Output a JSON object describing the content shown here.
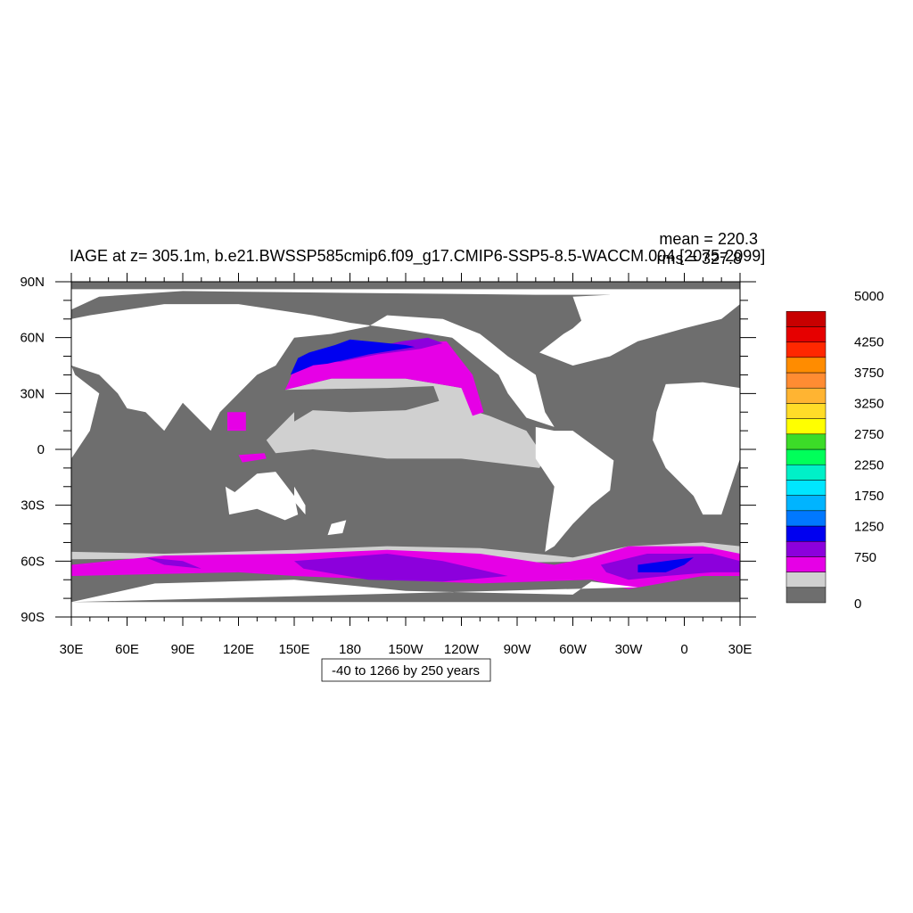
{
  "title": "IAGE at z= 305.1m, b.e21.BWSSP585cmip6.f09_g17.CMIP6-SSP5-8.5-WACCM.004 [2075-2099]",
  "stats": {
    "mean": "mean = 220.3",
    "rms": "rms = 327.8"
  },
  "contour_info": "-40 to 1266 by 250 years",
  "chart_data": {
    "type": "heatmap",
    "title": "IAGE at z= 305.1m, b.e21.BWSSP585cmip6.f09_g17.CMIP6-SSP5-8.5-WACCM.004 [2075-2099]",
    "xlabel": "",
    "ylabel": "",
    "x_range": [
      30,
      390
    ],
    "y_range": [
      -90,
      90
    ],
    "x_ticks": [
      {
        "value": 30,
        "label": "30E"
      },
      {
        "value": 60,
        "label": "60E"
      },
      {
        "value": 90,
        "label": "90E"
      },
      {
        "value": 120,
        "label": "120E"
      },
      {
        "value": 150,
        "label": "150E"
      },
      {
        "value": 180,
        "label": "180"
      },
      {
        "value": 210,
        "label": "150W"
      },
      {
        "value": 240,
        "label": "120W"
      },
      {
        "value": 270,
        "label": "90W"
      },
      {
        "value": 300,
        "label": "60W"
      },
      {
        "value": 330,
        "label": "30W"
      },
      {
        "value": 360,
        "label": "0"
      },
      {
        "value": 390,
        "label": "30E"
      }
    ],
    "y_ticks": [
      {
        "value": 90,
        "label": "90N"
      },
      {
        "value": 60,
        "label": "60N"
      },
      {
        "value": 30,
        "label": "30N"
      },
      {
        "value": 0,
        "label": "0"
      },
      {
        "value": -30,
        "label": "30S"
      },
      {
        "value": -60,
        "label": "60S"
      },
      {
        "value": -90,
        "label": "90S"
      }
    ],
    "colorbar": {
      "colors": [
        "#6e6e6e",
        "#d0d0d0",
        "#e600e6",
        "#8c00dc",
        "#0000f0",
        "#0078ff",
        "#00b4ff",
        "#00e6ff",
        "#00f0c8",
        "#00ff5a",
        "#3cdc28",
        "#ffff00",
        "#ffdc28",
        "#ffb432",
        "#ff8c32",
        "#ff8c00",
        "#ff2800",
        "#e60000",
        "#c80000"
      ],
      "labels": [
        "0",
        "750",
        "1250",
        "1750",
        "2250",
        "2750",
        "3250",
        "3750",
        "4250",
        "5000"
      ]
    },
    "regions": [
      {
        "class": 1,
        "points": [
          [
            135,
            5
          ],
          [
            150,
            20
          ],
          [
            180,
            25
          ],
          [
            215,
            30
          ],
          [
            255,
            18
          ],
          [
            275,
            10
          ],
          [
            285,
            -5
          ],
          [
            282,
            -10
          ],
          [
            240,
            -5
          ],
          [
            200,
            -5
          ],
          [
            160,
            0
          ],
          [
            140,
            -2
          ]
        ]
      },
      {
        "class": 0,
        "points": [
          [
            150,
            15
          ],
          [
            150,
            28
          ],
          [
            172,
            33
          ],
          [
            200,
            33
          ],
          [
            225,
            34
          ],
          [
            228,
            26
          ],
          [
            210,
            21
          ],
          [
            180,
            20
          ],
          [
            160,
            21
          ]
        ]
      },
      {
        "class": 1,
        "points": [
          [
            145,
            32
          ],
          [
            170,
            38
          ],
          [
            210,
            38
          ],
          [
            240,
            33
          ],
          [
            250,
            20
          ],
          [
            240,
            16
          ],
          [
            228,
            26
          ],
          [
            225,
            34
          ],
          [
            200,
            33
          ]
        ]
      },
      {
        "class": 2,
        "points": [
          [
            147,
            36
          ],
          [
            150,
            44
          ],
          [
            180,
            50
          ],
          [
            210,
            57
          ],
          [
            232,
            58
          ],
          [
            246,
            40
          ],
          [
            252,
            20
          ],
          [
            246,
            18
          ],
          [
            240,
            33
          ],
          [
            210,
            38
          ],
          [
            170,
            38
          ],
          [
            145,
            32
          ]
        ]
      },
      {
        "class": 3,
        "points": [
          [
            160,
            47
          ],
          [
            180,
            52
          ],
          [
            208,
            58
          ],
          [
            222,
            60
          ],
          [
            230,
            57
          ],
          [
            218,
            54
          ],
          [
            195,
            51
          ],
          [
            175,
            47
          ]
        ]
      },
      {
        "class": 4,
        "points": [
          [
            150,
            44
          ],
          [
            158,
            52
          ],
          [
            172,
            56
          ],
          [
            180,
            59
          ],
          [
            190,
            58
          ],
          [
            210,
            56
          ],
          [
            215,
            55
          ],
          [
            190,
            51
          ],
          [
            168,
            46
          ]
        ]
      },
      {
        "class": 4,
        "points": [
          [
            148,
            40
          ],
          [
            152,
            49
          ],
          [
            158,
            52
          ],
          [
            160,
            45
          ]
        ]
      },
      {
        "class": 2,
        "points": [
          [
            114,
            10
          ],
          [
            114,
            20
          ],
          [
            124,
            20
          ],
          [
            124,
            10
          ]
        ]
      },
      {
        "class": 2,
        "points": [
          [
            120,
            -3
          ],
          [
            122,
            -7
          ],
          [
            135,
            -5
          ],
          [
            134,
            -2
          ]
        ]
      },
      {
        "class": 1,
        "points": [
          [
            30,
            -55
          ],
          [
            80,
            -56
          ],
          [
            150,
            -54
          ],
          [
            200,
            -52
          ],
          [
            250,
            -53
          ],
          [
            300,
            -58
          ],
          [
            330,
            -52
          ],
          [
            370,
            -50
          ],
          [
            390,
            -52
          ],
          [
            390,
            -60
          ],
          [
            330,
            -60
          ],
          [
            250,
            -61
          ],
          [
            150,
            -58
          ],
          [
            30,
            -59
          ]
        ]
      },
      {
        "class": 2,
        "points": [
          [
            30,
            -62
          ],
          [
            80,
            -57
          ],
          [
            150,
            -56
          ],
          [
            200,
            -54
          ],
          [
            250,
            -56
          ],
          [
            290,
            -62
          ],
          [
            310,
            -58
          ],
          [
            330,
            -52
          ],
          [
            370,
            -52
          ],
          [
            390,
            -56
          ],
          [
            390,
            -68
          ],
          [
            370,
            -68
          ],
          [
            330,
            -75
          ],
          [
            310,
            -70
          ],
          [
            250,
            -72
          ],
          [
            200,
            -70
          ],
          [
            150,
            -68
          ],
          [
            120,
            -66
          ],
          [
            30,
            -68
          ]
        ]
      },
      {
        "class": 3,
        "points": [
          [
            70,
            -58
          ],
          [
            80,
            -62
          ],
          [
            100,
            -64
          ],
          [
            90,
            -60
          ]
        ]
      },
      {
        "class": 3,
        "points": [
          [
            150,
            -60
          ],
          [
            200,
            -56
          ],
          [
            230,
            -60
          ],
          [
            265,
            -68
          ],
          [
            230,
            -71
          ],
          [
            190,
            -70
          ],
          [
            155,
            -64
          ]
        ]
      },
      {
        "class": 3,
        "points": [
          [
            315,
            -62
          ],
          [
            340,
            -56
          ],
          [
            375,
            -56
          ],
          [
            390,
            -60
          ],
          [
            390,
            -66
          ],
          [
            375,
            -66
          ],
          [
            350,
            -68
          ],
          [
            330,
            -70
          ],
          [
            318,
            -66
          ]
        ]
      },
      {
        "class": 4,
        "points": [
          [
            335,
            -62
          ],
          [
            350,
            -60
          ],
          [
            365,
            -58
          ],
          [
            360,
            -62
          ],
          [
            350,
            -66
          ],
          [
            335,
            -66
          ]
        ]
      }
    ],
    "land": [
      {
        "points": [
          [
            75,
            -72
          ],
          [
            150,
            -70
          ],
          [
            210,
            -76
          ],
          [
            300,
            -78
          ],
          [
            310,
            -71
          ],
          [
            335,
            -74
          ],
          [
            30,
            -82
          ],
          [
            30,
            -90
          ],
          [
            390,
            -90
          ],
          [
            390,
            -82
          ],
          [
            360,
            -82
          ],
          [
            30,
            -82
          ]
        ]
      },
      {
        "points": [
          [
            30,
            -5
          ],
          [
            40,
            10
          ],
          [
            45,
            30
          ],
          [
            32,
            40
          ],
          [
            30,
            45
          ]
        ]
      },
      {
        "points": [
          [
            30,
            45
          ],
          [
            45,
            40
          ],
          [
            55,
            30
          ],
          [
            60,
            22
          ],
          [
            70,
            20
          ],
          [
            80,
            10
          ],
          [
            90,
            25
          ],
          [
            100,
            15
          ],
          [
            105,
            10
          ],
          [
            110,
            20
          ],
          [
            120,
            30
          ],
          [
            130,
            40
          ],
          [
            140,
            45
          ],
          [
            150,
            60
          ],
          [
            170,
            62
          ],
          [
            190,
            66
          ],
          [
            200,
            72
          ],
          [
            230,
            70
          ],
          [
            250,
            62
          ],
          [
            255,
            58
          ],
          [
            265,
            50
          ],
          [
            280,
            40
          ],
          [
            285,
            20
          ],
          [
            290,
            12
          ],
          [
            275,
            17
          ],
          [
            265,
            30
          ],
          [
            260,
            40
          ],
          [
            235,
            60
          ],
          [
            210,
            64
          ],
          [
            180,
            68
          ],
          [
            160,
            72
          ],
          [
            120,
            78
          ],
          [
            80,
            78
          ],
          [
            40,
            72
          ],
          [
            30,
            70
          ]
        ]
      },
      {
        "points": [
          [
            30,
            75
          ],
          [
            45,
            82
          ],
          [
            90,
            85
          ],
          [
            180,
            84
          ],
          [
            280,
            83
          ],
          [
            320,
            83
          ],
          [
            300,
            65
          ],
          [
            295,
            62
          ],
          [
            282,
            52
          ],
          [
            300,
            45
          ],
          [
            320,
            50
          ],
          [
            335,
            58
          ],
          [
            360,
            65
          ],
          [
            380,
            70
          ],
          [
            390,
            78
          ],
          [
            390,
            86
          ],
          [
            30,
            86
          ]
        ]
      },
      {
        "points": [
          [
            300,
            82
          ],
          [
            320,
            83
          ],
          [
            340,
            78
          ],
          [
            330,
            70
          ],
          [
            318,
            62
          ],
          [
            305,
            68
          ]
        ]
      },
      {
        "points": [
          [
            280,
            12
          ],
          [
            290,
            10
          ],
          [
            300,
            10
          ],
          [
            322,
            -6
          ],
          [
            320,
            -22
          ],
          [
            310,
            -30
          ],
          [
            300,
            -40
          ],
          [
            290,
            -52
          ],
          [
            285,
            -55
          ],
          [
            287,
            -40
          ],
          [
            290,
            -20
          ],
          [
            280,
            -5
          ]
        ]
      },
      {
        "points": [
          [
            350,
            35
          ],
          [
            370,
            36
          ],
          [
            390,
            33
          ],
          [
            390,
            -5
          ],
          [
            385,
            -20
          ],
          [
            380,
            -35
          ],
          [
            370,
            -35
          ],
          [
            365,
            -25
          ],
          [
            350,
            -10
          ],
          [
            343,
            5
          ],
          [
            345,
            20
          ]
        ]
      },
      {
        "points": [
          [
            113,
            -20
          ],
          [
            118,
            -23
          ],
          [
            130,
            -13
          ],
          [
            140,
            -12
          ],
          [
            150,
            -25
          ],
          [
            152,
            -35
          ],
          [
            145,
            -38
          ],
          [
            130,
            -32
          ],
          [
            115,
            -35
          ]
        ]
      },
      {
        "points": [
          [
            55,
            55
          ],
          [
            65,
            65
          ],
          [
            80,
            70
          ],
          [
            75,
            60
          ]
        ]
      },
      {
        "points": [
          [
            330,
            60
          ],
          [
            342,
            63
          ],
          [
            342,
            67
          ],
          [
            330,
            66
          ]
        ]
      },
      {
        "points": [
          [
            170,
            -40
          ],
          [
            178,
            -38
          ],
          [
            176,
            -45
          ],
          [
            168,
            -46
          ]
        ]
      },
      {
        "points": [
          [
            150,
            -20
          ],
          [
            156,
            -30
          ],
          [
            156,
            -35
          ],
          [
            150,
            -28
          ]
        ]
      }
    ]
  }
}
